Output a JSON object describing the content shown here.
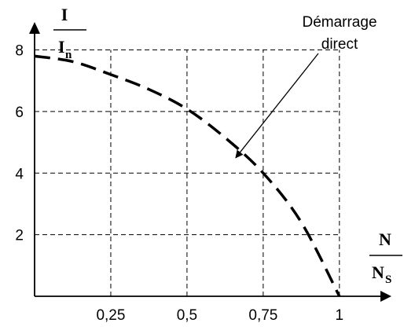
{
  "chart_data": {
    "type": "line",
    "x": [
      0,
      0.125,
      0.25,
      0.375,
      0.5,
      0.625,
      0.75,
      0.875,
      1
    ],
    "series": [
      {
        "values": [
          7.8,
          7.62,
          7.2,
          6.72,
          6.08,
          5.15,
          4.0,
          2.4,
          0.0
        ],
        "style": "dashed",
        "color": "#000000"
      }
    ],
    "xlim": [
      0,
      1.15
    ],
    "ylim": [
      0,
      8.6
    ],
    "x_ticks": [
      0.25,
      0.5,
      0.75,
      1
    ],
    "x_tick_labels": [
      "0,25",
      "0,5",
      "0,75",
      "1"
    ],
    "y_ticks": [
      2,
      4,
      6,
      8
    ],
    "y_tick_labels": [
      "2",
      "4",
      "6",
      "8"
    ],
    "xlabel": {
      "num": "N",
      "den": "N",
      "den_sub": "S"
    },
    "ylabel": {
      "num": "I",
      "den": "I",
      "den_sub": "n"
    },
    "grid": true,
    "grid_style": "dashed",
    "annotation": {
      "lines": [
        "Démarrage",
        "direct"
      ],
      "points_to": [
        0.66,
        4.5
      ]
    }
  }
}
